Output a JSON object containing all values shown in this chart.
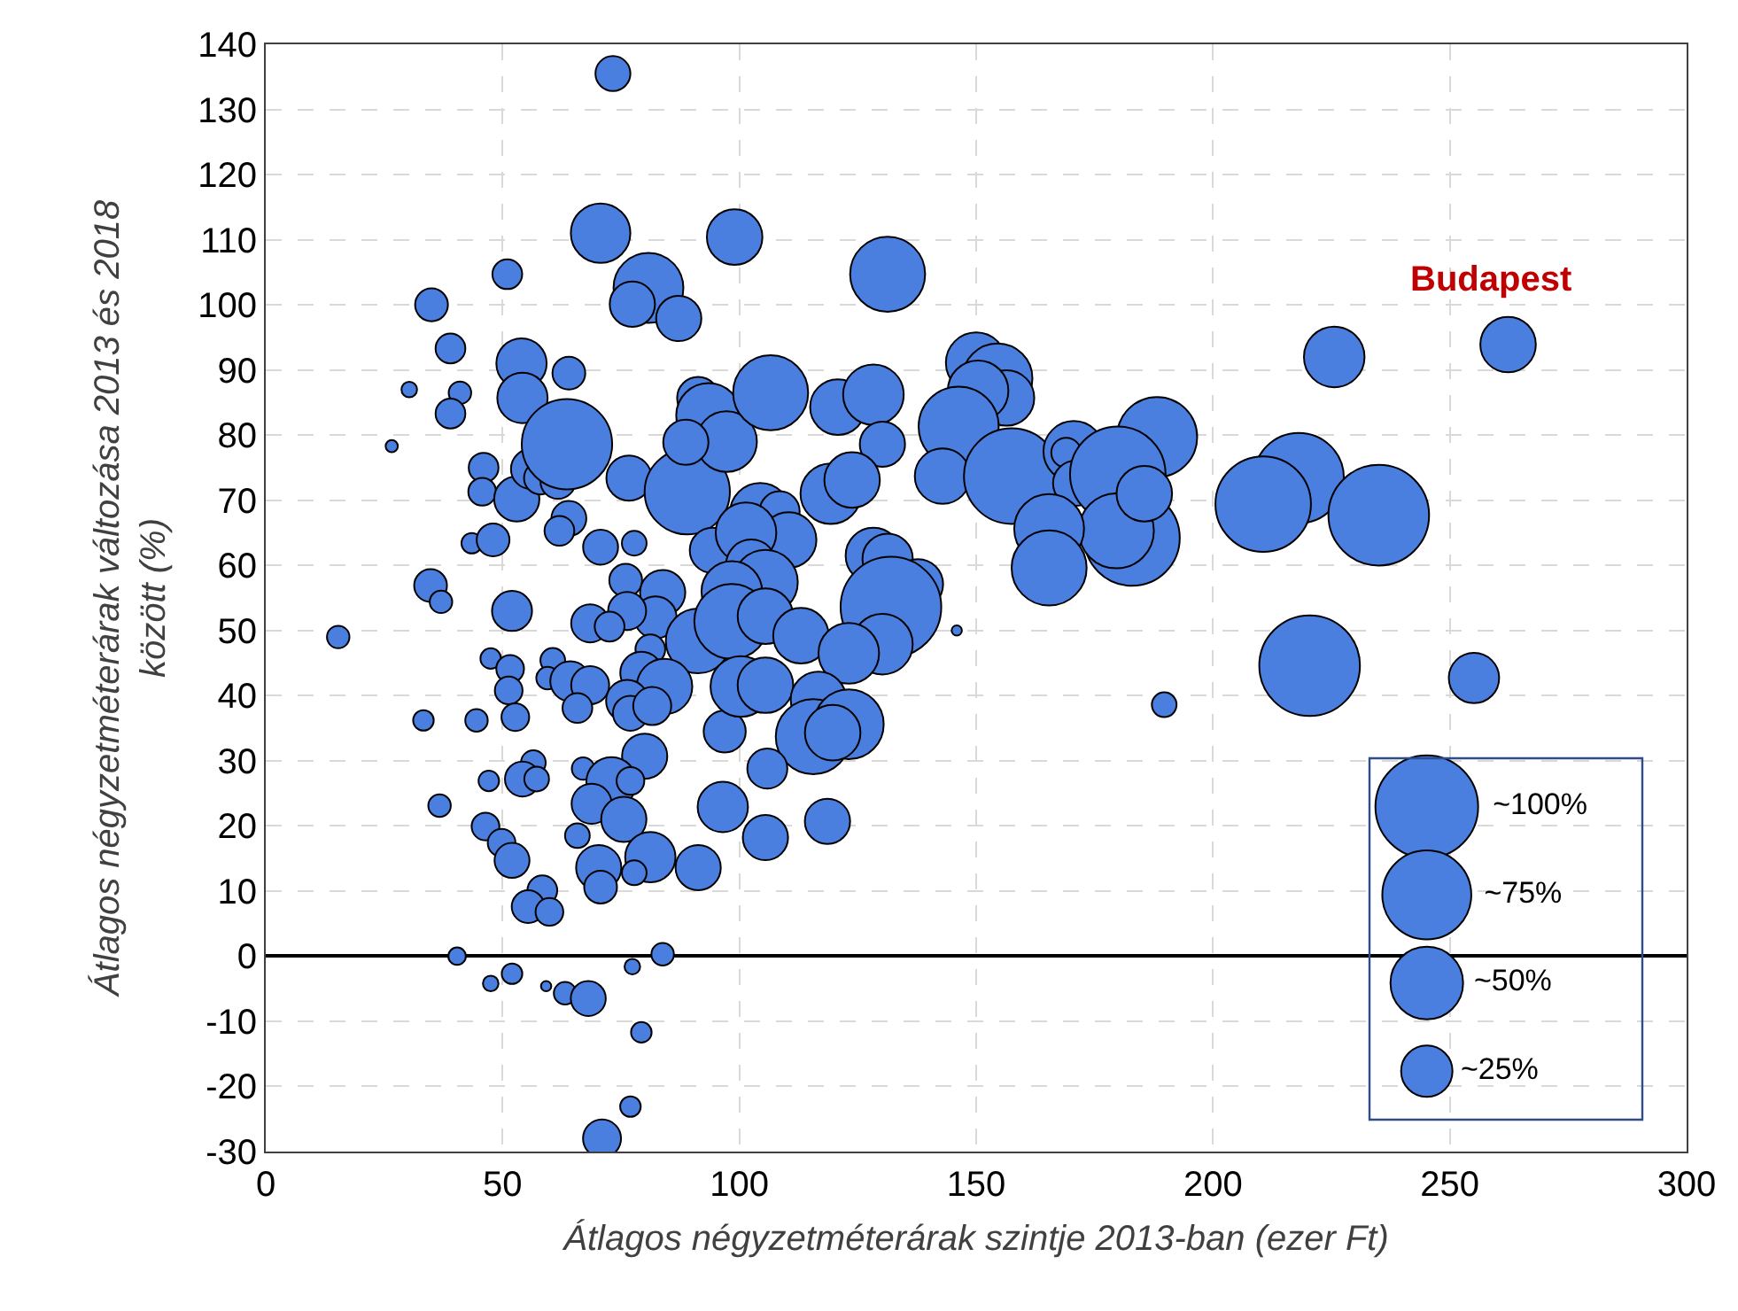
{
  "chart_data": {
    "type": "bubble",
    "xlabel": "Átlagos négyzetméterárak szintje 2013-ban (ezer Ft)",
    "ylabel": "Átlagos négyzetméterárak változása 2013 és 2018 között (%)",
    "xlim": [
      0,
      300
    ],
    "xticks": [
      0,
      50,
      100,
      150,
      200,
      250,
      300
    ],
    "ylim": [
      -30,
      140
    ],
    "yticks": [
      -30,
      -20,
      -10,
      0,
      10,
      20,
      30,
      40,
      50,
      60,
      70,
      80,
      90,
      100,
      110,
      120,
      130,
      140
    ],
    "grid": true,
    "marker": "circle",
    "size_legend": [
      {
        "value": 100,
        "label": "~100%"
      },
      {
        "value": 75,
        "label": "~75%"
      },
      {
        "value": 50,
        "label": "~50%"
      },
      {
        "value": 25,
        "label": "~25%"
      }
    ],
    "annotations": [
      {
        "text": "Budapest",
        "x": 262.3,
        "y": 93.9
      }
    ],
    "series": [
      {
        "color": "#4a7fe0",
        "x": [
          73.3,
          70.7,
          99,
          80.8,
          77.4,
          87.2,
          131.3,
          35,
          51,
          39,
          54,
          54.2,
          64,
          30.3,
          41,
          26.6,
          39,
          46,
          45.7,
          53,
          56,
          58,
          61.7,
          76.7,
          89,
          91.3,
          93.5,
          97.3,
          88.7,
          63.6,
          64,
          62,
          43.5,
          48,
          70.7,
          77.8,
          94.3,
          34.8,
          37,
          52,
          76,
          83.8,
          82.3,
          76.3,
          68.5,
          72.6,
          91.3,
          15.3,
          47.5,
          51.6,
          51.3,
          33.3,
          44.5,
          52.7,
          60.6,
          59.5,
          64.3,
          68.5,
          65.8,
          81.2,
          79.3,
          84.2,
          76.3,
          77,
          81.6,
          96.9,
          56.5,
          54.2,
          57.2,
          47.1,
          67,
          80,
          73,
          77,
          68.8,
          75.6,
          96.5,
          36.7,
          46.4,
          49.8,
          52,
          65.8,
          70.3,
          81.2,
          77.8,
          70.7,
          91.3,
          58.4,
          55.4,
          59.9,
          40.4,
          83.8,
          77.4,
          52,
          47.5,
          59.2,
          63.2,
          68.1,
          79.3,
          77,
          71,
          106.6,
          120.8,
          128.3,
          130.2,
          150,
          154.5,
          156.4,
          150.4,
          146.3,
          142.9,
          157.5,
          170.6,
          169,
          171,
          188.2,
          179.9,
          182.9,
          179.6,
          185.5,
          165.4,
          165.4,
          145.9,
          189.7,
          119.3,
          123.8,
          104.4,
          108.5,
          110.4,
          101.4,
          102.5,
          105.5,
          98.4,
          98.4,
          105.5,
          113,
          128.3,
          131.3,
          137.7,
          132,
          130.2,
          123.1,
          100.3,
          105.5,
          116.7,
          115.6,
          123.1,
          119.7,
          105.9,
          118.6,
          105.5,
          225.6,
          262.3,
          218.1,
          210.6,
          235,
          220.4,
          255.1
        ],
        "values": [
          135.5,
          111,
          110.4,
          102.6,
          100.1,
          97.9,
          104.7,
          100,
          104.7,
          93.3,
          91,
          85.7,
          89.5,
          87,
          86.5,
          78.3,
          83.3,
          75,
          71.3,
          70.2,
          74.8,
          73.4,
          72.9,
          73.4,
          71.3,
          85.7,
          83,
          79,
          78.9,
          78.6,
          67.2,
          65.3,
          63.4,
          63.9,
          62.8,
          63.4,
          62.3,
          56.9,
          54.4,
          53,
          57.7,
          55.8,
          52,
          53,
          51.1,
          50.6,
          48.4,
          49,
          45.7,
          44.1,
          40.8,
          36.2,
          36.2,
          36.7,
          45.4,
          42.7,
          42.2,
          41.6,
          38.1,
          47.1,
          43.5,
          41.4,
          39.2,
          37.3,
          38.4,
          34.5,
          29.7,
          27.2,
          27.2,
          26.9,
          28.8,
          30.7,
          26.7,
          26.9,
          23.4,
          21,
          22.9,
          23.1,
          19.9,
          17.4,
          14.7,
          18.5,
          13.6,
          15.2,
          12.8,
          10.6,
          13.6,
          10.1,
          7.6,
          6.8,
          0,
          0.3,
          -1.6,
          -2.7,
          -4.2,
          -4.6,
          -5.7,
          -6.5,
          -11.7,
          -23.1,
          -28,
          86.5,
          84.3,
          86.2,
          78.6,
          91.1,
          88.7,
          85.7,
          86.8,
          81.3,
          73.7,
          73.7,
          77.5,
          77.3,
          72.6,
          79.7,
          74,
          64.2,
          65.3,
          71,
          65.6,
          59.6,
          50,
          38.6,
          71,
          73.1,
          68,
          68.3,
          63.9,
          65,
          60.1,
          57.4,
          56,
          51.4,
          52.2,
          49.2,
          61.5,
          61,
          57.1,
          53.6,
          47.9,
          46.5,
          41.4,
          41.6,
          39.4,
          33.7,
          35.6,
          34.3,
          28.8,
          20.7,
          18.2,
          92,
          93.9,
          73.4,
          69.4,
          67.7,
          44.6,
          42.7
        ],
        "sizes": [
          11.6,
          33.6,
          29.2,
          46.2,
          19.4,
          19.4,
          53.3,
          10.2,
          8.4,
          8.4,
          24,
          24,
          10.2,
          2.3,
          4.8,
          1.4,
          8.4,
          8.4,
          7.3,
          19.4,
          15.2,
          10.2,
          11.6,
          19.4,
          68.9,
          16.8,
          39.7,
          34.8,
          19.4,
          77.4,
          11.6,
          8.4,
          4,
          10.2,
          11.6,
          5.8,
          19.4,
          10.2,
          4.8,
          15.2,
          10.2,
          19.4,
          16.8,
          13.7,
          13.7,
          8.4,
          39.7,
          4.8,
          4,
          7.3,
          7.3,
          4,
          4.8,
          7.3,
          5.8,
          4.8,
          15.2,
          13.7,
          8.4,
          8.4,
          16.8,
          29.2,
          16.8,
          11.6,
          13.7,
          16.8,
          5.8,
          11.6,
          5.8,
          4,
          4.8,
          19.4,
          24,
          7.3,
          15.2,
          19.4,
          24,
          4.8,
          7.3,
          7.3,
          11.6,
          5.8,
          19.4,
          24,
          5.8,
          10.2,
          19.4,
          8.4,
          10.2,
          7.3,
          2.9,
          4.8,
          2.3,
          4,
          2.3,
          1,
          4.8,
          11.6,
          4,
          4,
          13.7,
          53.3,
          29.2,
          34.8,
          19.4,
          34.8,
          46.2,
          29.2,
          34.8,
          60.8,
          29.2,
          86.5,
          34.8,
          8.4,
          19.4,
          60.8,
          86.5,
          86.5,
          53.3,
          29.2,
          46.2,
          53.3,
          1,
          5.8,
          34.8,
          29.2,
          34.8,
          15.2,
          29.2,
          34.8,
          24,
          39.7,
          34.8,
          53.3,
          29.2,
          29.2,
          29.2,
          24,
          24,
          96,
          34.8,
          34.8,
          34.8,
          29.2,
          29.2,
          53.3,
          46.2,
          29.2,
          15.2,
          19.4,
          19.4,
          34.8,
          29.2,
          77.4,
          86.5,
          96,
          96,
          24
        ]
      }
    ]
  }
}
